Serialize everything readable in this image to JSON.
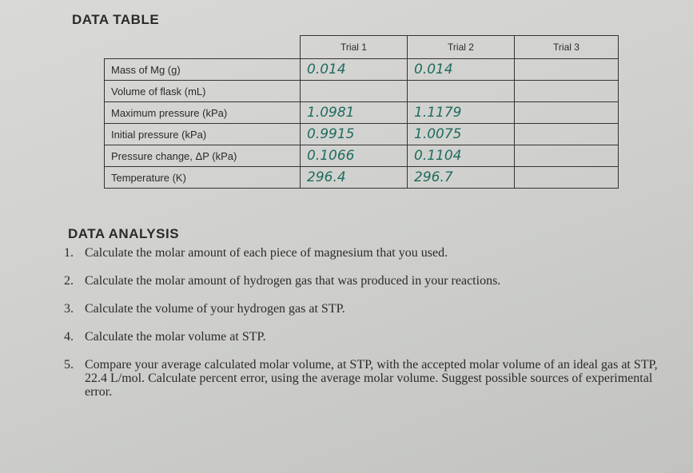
{
  "data_table": {
    "title": "DATA TABLE",
    "columns": [
      "Trial 1",
      "Trial 2",
      "Trial 3"
    ],
    "rows": [
      {
        "label": "Mass of Mg (g)",
        "values": [
          "0.014",
          "0.014"
        ]
      },
      {
        "label": "Volume of flask (mL)"
      },
      {
        "label": "Maximum pressure (kPa)",
        "values": [
          "1.0981",
          "1.1179"
        ]
      },
      {
        "label": "Initial pressure (kPa)",
        "values": [
          "0.9915",
          "1.0075"
        ]
      },
      {
        "label": "Pressure change, ΔP (kPa)",
        "values": [
          "0.1066",
          "0.1104"
        ]
      },
      {
        "label": "Temperature (K)",
        "values": [
          "296.4",
          "296.7"
        ]
      }
    ]
  },
  "data_analysis": {
    "title": "DATA ANALYSIS",
    "items": [
      {
        "number": "1.",
        "text": "Calculate the molar amount of each piece of magnesium that you used."
      },
      {
        "number": "2.",
        "text": "Calculate the molar amount of hydrogen gas that was produced in your reactions."
      },
      {
        "number": "3.",
        "text": "Calculate the volume of your hydrogen gas at STP."
      },
      {
        "number": "4.",
        "text": "Calculate the molar volume at STP."
      },
      {
        "number": "5.",
        "text": "Compare your average calculated molar volume, at STP, with the accepted molar volume of an ideal gas at STP, 22.4 L/mol. Calculate percent error, using the average molar volume. Suggest possible sources of experimental error."
      }
    ]
  }
}
